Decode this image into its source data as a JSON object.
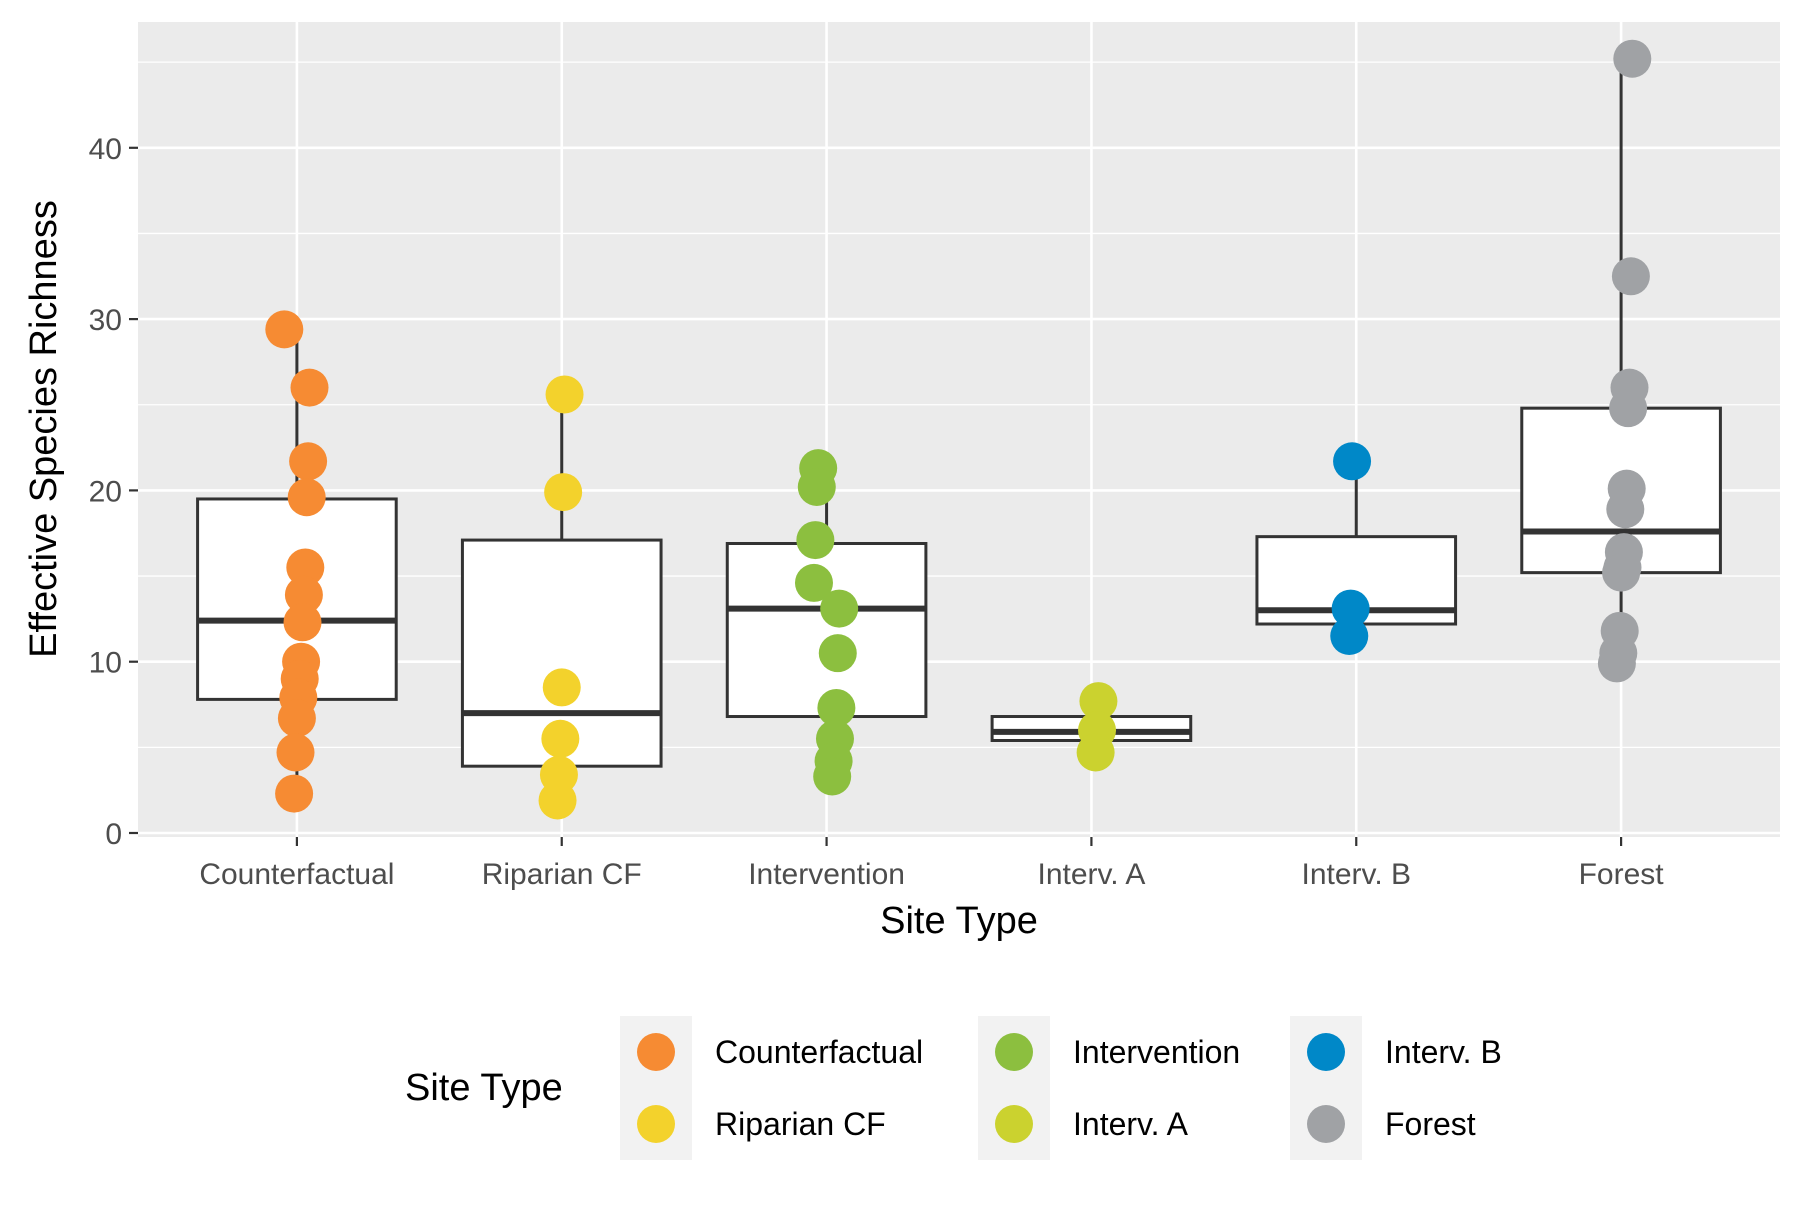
{
  "chart_data": {
    "type": "boxplot",
    "title": "",
    "xlabel": "Site Type",
    "ylabel": "Effective Species Richness",
    "ylim": [
      0,
      45
    ],
    "yticks": [
      0,
      10,
      20,
      30,
      40
    ],
    "categories": [
      "Counterfactual",
      "Riparian CF",
      "Intervention",
      "Interv. A",
      "Interv. B",
      "Forest"
    ],
    "colors": {
      "Counterfactual": "#f68b33",
      "Riparian CF": "#f3d22c",
      "Intervention": "#8cbf3f",
      "Interv. A": "#cbd22f",
      "Interv. B": "#0088c8",
      "Forest": "#a0a2a5"
    },
    "boxes": [
      {
        "category": "Counterfactual",
        "min": 2.3,
        "q1": 7.8,
        "median": 12.4,
        "q3": 19.5,
        "max": 29.4
      },
      {
        "category": "Riparian CF",
        "min": 1.9,
        "q1": 3.9,
        "median": 7.0,
        "q3": 17.1,
        "max": 25.6
      },
      {
        "category": "Intervention",
        "min": 3.3,
        "q1": 6.8,
        "median": 13.1,
        "q3": 16.9,
        "max": 21.3
      },
      {
        "category": "Interv. A",
        "min": 4.7,
        "q1": 5.4,
        "median": 5.9,
        "q3": 6.8,
        "max": 7.7
      },
      {
        "category": "Interv. B",
        "min": 11.5,
        "q1": 12.2,
        "median": 13.0,
        "q3": 17.3,
        "max": 21.7
      },
      {
        "category": "Forest",
        "min": 9.9,
        "q1": 15.2,
        "median": 17.6,
        "q3": 24.8,
        "max": 45.2
      }
    ],
    "points": [
      {
        "category": "Counterfactual",
        "values": [
          29.4,
          26.0,
          21.7,
          19.6,
          15.5,
          13.9,
          12.3,
          10.0,
          9.0,
          7.9,
          6.7,
          4.7,
          2.3
        ]
      },
      {
        "category": "Riparian CF",
        "values": [
          25.6,
          19.9,
          8.5,
          5.5,
          3.4,
          1.9
        ]
      },
      {
        "category": "Intervention",
        "values": [
          21.3,
          20.2,
          17.1,
          14.6,
          13.1,
          10.5,
          7.3,
          5.5,
          4.2,
          3.3
        ]
      },
      {
        "category": "Interv. A",
        "values": [
          7.7,
          6.0,
          4.7
        ]
      },
      {
        "category": "Interv. B",
        "values": [
          21.7,
          13.1,
          11.5
        ]
      },
      {
        "category": "Forest",
        "values": [
          45.2,
          32.5,
          26.0,
          24.8,
          20.1,
          18.9,
          16.4,
          15.5,
          15.2,
          11.8,
          10.5,
          9.9
        ]
      }
    ],
    "grid": true,
    "legend": {
      "title": "Site Type",
      "position": "bottom",
      "entries": [
        "Counterfactual",
        "Riparian CF",
        "Intervention",
        "Interv. A",
        "Interv. B",
        "Forest"
      ]
    }
  }
}
